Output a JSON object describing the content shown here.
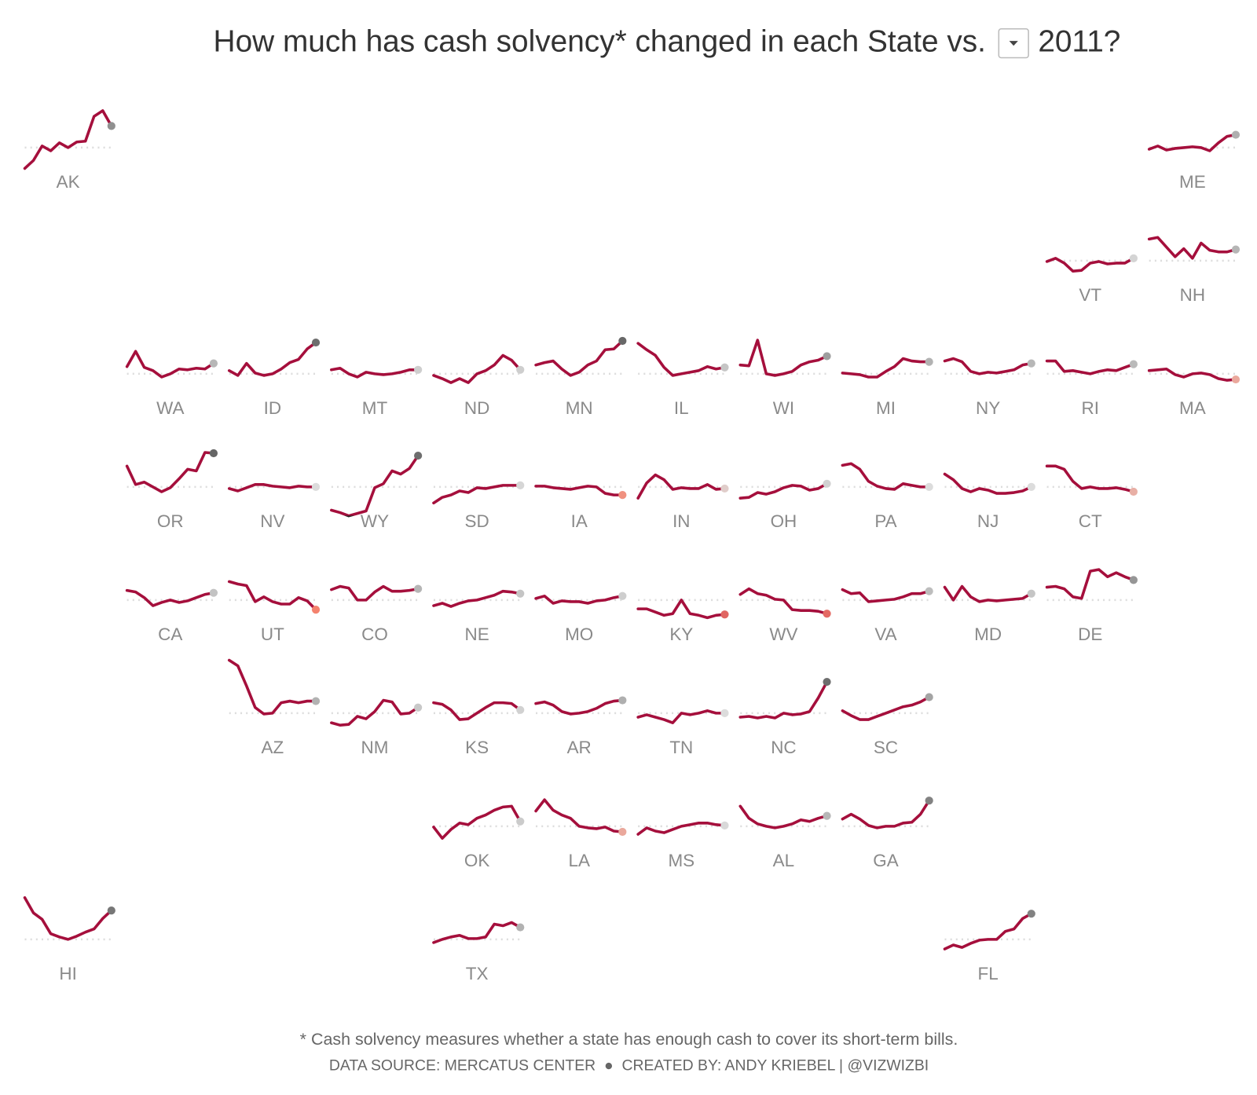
{
  "chart_data": {
    "type": "line",
    "title": "How much has cash solvency* changed in each State vs.",
    "selected_year": "2011?",
    "footnote": "* Cash solvency measures whether a state has enough cash to cover its short-term bills.",
    "source": "DATA SOURCE: MERCATUS CENTER  ●  CREATED BY: ANDY KRIEBEL | @VIZWIZBI",
    "ylim": [
      -40,
      70
    ],
    "reference_line": 0,
    "color_scale": [
      {
        "value": -36,
        "color": "#a50f3c"
      },
      {
        "value": -12,
        "color": "#f4826e"
      },
      {
        "value": 0,
        "color": "#dcdcdc"
      },
      {
        "value": 66,
        "color": "#222222"
      }
    ],
    "series": [
      {
        "name": "AK",
        "values": [
          -26,
          -16,
          2,
          -4,
          6,
          0,
          7,
          8,
          39,
          46,
          27
        ]
      },
      {
        "name": "ME",
        "values": [
          -2,
          2,
          -3,
          -1,
          0,
          1,
          0,
          -4,
          6,
          14,
          16
        ]
      },
      {
        "name": "VT",
        "values": [
          -1,
          3,
          -3,
          -13,
          -12,
          -3,
          -1,
          -4,
          -3,
          -3,
          3
        ]
      },
      {
        "name": "NH",
        "values": [
          27,
          29,
          17,
          5,
          15,
          3,
          22,
          13,
          11,
          11,
          14
        ]
      },
      {
        "name": "WA",
        "values": [
          9,
          28,
          8,
          4,
          -4,
          0,
          6,
          5,
          7,
          6,
          13
        ]
      },
      {
        "name": "ID",
        "values": [
          4,
          -2,
          13,
          1,
          -2,
          0,
          6,
          14,
          18,
          31,
          39
        ]
      },
      {
        "name": "MT",
        "values": [
          5,
          7,
          0,
          -4,
          2,
          0,
          -1,
          0,
          2,
          5,
          5
        ]
      },
      {
        "name": "ND",
        "values": [
          -2,
          -6,
          -11,
          -6,
          -11,
          0,
          4,
          11,
          23,
          17,
          5
        ]
      },
      {
        "name": "MN",
        "values": [
          11,
          14,
          16,
          6,
          -2,
          2,
          11,
          16,
          30,
          31,
          41
        ]
      },
      {
        "name": "IL",
        "values": [
          38,
          30,
          23,
          8,
          -2,
          0,
          2,
          4,
          9,
          6,
          8
        ]
      },
      {
        "name": "WI",
        "values": [
          11,
          10,
          42,
          0,
          -2,
          0,
          3,
          11,
          15,
          17,
          22
        ]
      },
      {
        "name": "MI",
        "values": [
          1,
          0,
          -1,
          -4,
          -4,
          3,
          9,
          19,
          16,
          15,
          15
        ]
      },
      {
        "name": "NY",
        "values": [
          16,
          19,
          15,
          3,
          0,
          2,
          1,
          3,
          5,
          11,
          13
        ]
      },
      {
        "name": "RI",
        "values": [
          16,
          16,
          3,
          4,
          2,
          0,
          3,
          5,
          4,
          8,
          12
        ]
      },
      {
        "name": "MA",
        "values": [
          4,
          5,
          6,
          -1,
          -4,
          0,
          1,
          -1,
          -6,
          -8,
          -7
        ]
      },
      {
        "name": "OR",
        "values": [
          26,
          3,
          6,
          0,
          -6,
          -1,
          10,
          22,
          20,
          43,
          42
        ]
      },
      {
        "name": "NV",
        "values": [
          -2,
          -5,
          -1,
          3,
          3,
          1,
          0,
          -1,
          1,
          0,
          0
        ]
      },
      {
        "name": "WY",
        "values": [
          -29,
          -32,
          -36,
          -33,
          -30,
          -1,
          4,
          20,
          16,
          23,
          39
        ]
      },
      {
        "name": "SD",
        "values": [
          -20,
          -13,
          -10,
          -5,
          -7,
          -1,
          -2,
          0,
          2,
          2,
          2
        ]
      },
      {
        "name": "IA",
        "values": [
          1,
          1,
          -1,
          -2,
          -3,
          -1,
          1,
          0,
          -8,
          -10,
          -10
        ]
      },
      {
        "name": "IN",
        "values": [
          -14,
          5,
          15,
          9,
          -3,
          -1,
          -2,
          -2,
          3,
          -3,
          -2
        ]
      },
      {
        "name": "OH",
        "values": [
          -14,
          -13,
          -7,
          -9,
          -6,
          -1,
          2,
          1,
          -4,
          -2,
          4
        ]
      },
      {
        "name": "PA",
        "values": [
          27,
          29,
          22,
          7,
          1,
          -2,
          -3,
          4,
          2,
          0,
          0
        ]
      },
      {
        "name": "NJ",
        "values": [
          16,
          9,
          -2,
          -6,
          -2,
          -4,
          -8,
          -8,
          -7,
          -5,
          0
        ]
      },
      {
        "name": "CT",
        "values": [
          26,
          26,
          22,
          7,
          -2,
          0,
          -2,
          -2,
          -1,
          -3,
          -6
        ]
      },
      {
        "name": "CA",
        "values": [
          12,
          10,
          3,
          -7,
          -3,
          0,
          -3,
          -1,
          3,
          7,
          9
        ]
      },
      {
        "name": "UT",
        "values": [
          23,
          20,
          18,
          -2,
          4,
          -2,
          -5,
          -5,
          3,
          -1,
          -12
        ]
      },
      {
        "name": "CO",
        "values": [
          13,
          17,
          15,
          0,
          0,
          10,
          17,
          11,
          11,
          12,
          14
        ]
      },
      {
        "name": "NE",
        "values": [
          -7,
          -4,
          -8,
          -4,
          -1,
          0,
          3,
          6,
          11,
          10,
          8
        ]
      },
      {
        "name": "MO",
        "values": [
          2,
          5,
          -4,
          -1,
          -2,
          -2,
          -4,
          -1,
          0,
          3,
          5
        ]
      },
      {
        "name": "KY",
        "values": [
          -11,
          -11,
          -15,
          -19,
          -17,
          0,
          -17,
          -19,
          -22,
          -19,
          -18
        ]
      },
      {
        "name": "WV",
        "values": [
          7,
          14,
          8,
          6,
          1,
          0,
          -12,
          -13,
          -13,
          -14,
          -17
        ]
      },
      {
        "name": "VA",
        "values": [
          13,
          8,
          9,
          -2,
          -1,
          0,
          1,
          4,
          8,
          8,
          11
        ]
      },
      {
        "name": "MD",
        "values": [
          16,
          0,
          17,
          4,
          -2,
          0,
          -1,
          0,
          1,
          2,
          8
        ]
      },
      {
        "name": "DE",
        "values": [
          16,
          17,
          14,
          4,
          2,
          36,
          38,
          29,
          34,
          29,
          25
        ]
      },
      {
        "name": "AZ",
        "values": [
          66,
          59,
          34,
          7,
          -1,
          0,
          13,
          15,
          13,
          15,
          15
        ]
      },
      {
        "name": "NM",
        "values": [
          -12,
          -15,
          -14,
          -4,
          -7,
          2,
          16,
          14,
          -1,
          0,
          7
        ]
      },
      {
        "name": "KS",
        "values": [
          13,
          11,
          4,
          -8,
          -7,
          0,
          7,
          13,
          13,
          12,
          4
        ]
      },
      {
        "name": "AR",
        "values": [
          12,
          14,
          10,
          2,
          -1,
          0,
          2,
          6,
          12,
          15,
          16
        ]
      },
      {
        "name": "TN",
        "values": [
          -5,
          -2,
          -5,
          -8,
          -12,
          0,
          -2,
          0,
          3,
          0,
          0
        ]
      },
      {
        "name": "NC",
        "values": [
          -5,
          -4,
          -6,
          -4,
          -6,
          0,
          -2,
          -1,
          2,
          19,
          39
        ]
      },
      {
        "name": "SC",
        "values": [
          3,
          -3,
          -8,
          -8,
          -4,
          0,
          4,
          8,
          10,
          14,
          20
        ]
      },
      {
        "name": "OK",
        "values": [
          -1,
          -15,
          -4,
          4,
          2,
          10,
          14,
          20,
          24,
          25,
          6
        ]
      },
      {
        "name": "LA",
        "values": [
          19,
          33,
          20,
          14,
          10,
          0,
          -2,
          -3,
          -1,
          -6,
          -7
        ]
      },
      {
        "name": "MS",
        "values": [
          -10,
          -2,
          -6,
          -8,
          -4,
          0,
          2,
          4,
          4,
          2,
          1
        ]
      },
      {
        "name": "AL",
        "values": [
          25,
          10,
          3,
          0,
          -2,
          0,
          3,
          8,
          6,
          10,
          13
        ]
      },
      {
        "name": "GA",
        "values": [
          9,
          15,
          9,
          1,
          -2,
          0,
          0,
          4,
          5,
          15,
          32
        ]
      },
      {
        "name": "HI",
        "values": [
          52,
          33,
          25,
          7,
          3,
          0,
          4,
          9,
          13,
          26,
          36
        ]
      },
      {
        "name": "TX",
        "values": [
          -4,
          0,
          3,
          5,
          1,
          1,
          3,
          19,
          17,
          21,
          15
        ]
      },
      {
        "name": "FL",
        "values": [
          -12,
          -7,
          -10,
          -5,
          -1,
          0,
          0,
          10,
          13,
          26,
          32
        ]
      }
    ]
  }
}
